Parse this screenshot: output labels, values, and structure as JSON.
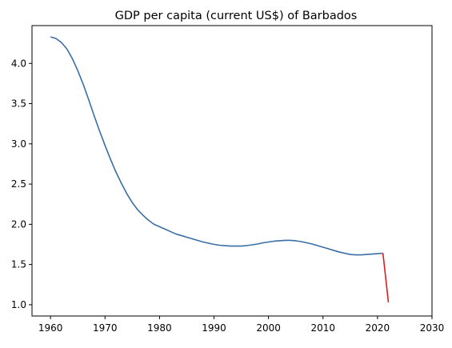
{
  "chart_data": {
    "type": "line",
    "title": "GDP per capita (current US$) of Barbados",
    "xlabel": "",
    "ylabel": "",
    "xlim": [
      1956.6,
      2030
    ],
    "ylim": [
      0.86,
      4.47
    ],
    "x_ticks": [
      1960,
      1970,
      1980,
      1990,
      2000,
      2010,
      2020,
      2030
    ],
    "y_ticks": [
      1.0,
      1.5,
      2.0,
      2.5,
      3.0,
      3.5,
      4.0
    ],
    "x_tick_labels": [
      "1960",
      "1970",
      "1980",
      "1990",
      "2000",
      "2010",
      "2020",
      "2030"
    ],
    "y_tick_labels": [
      "1.0",
      "1.5",
      "2.0",
      "2.5",
      "3.0",
      "3.5",
      "4.0"
    ],
    "grid": false,
    "legend": "none",
    "series": [
      {
        "color": "#3a6ea5",
        "points": [
          [
            1960,
            4.33
          ],
          [
            1961,
            4.31
          ],
          [
            1962,
            4.26
          ],
          [
            1963,
            4.18
          ],
          [
            1964,
            4.06
          ],
          [
            1965,
            3.91
          ],
          [
            1966,
            3.74
          ],
          [
            1967,
            3.55
          ],
          [
            1968,
            3.35
          ],
          [
            1969,
            3.16
          ],
          [
            1970,
            2.98
          ],
          [
            1971,
            2.81
          ],
          [
            1972,
            2.65
          ],
          [
            1973,
            2.51
          ],
          [
            1974,
            2.38
          ],
          [
            1975,
            2.27
          ],
          [
            1976,
            2.18
          ],
          [
            1977,
            2.11
          ],
          [
            1978,
            2.05
          ],
          [
            1979,
            2.0
          ],
          [
            1980,
            1.97
          ],
          [
            1981,
            1.94
          ],
          [
            1982,
            1.91
          ],
          [
            1983,
            1.88
          ],
          [
            1984,
            1.86
          ],
          [
            1985,
            1.84
          ],
          [
            1986,
            1.82
          ],
          [
            1987,
            1.8
          ],
          [
            1988,
            1.78
          ],
          [
            1989,
            1.765
          ],
          [
            1990,
            1.75
          ],
          [
            1991,
            1.74
          ],
          [
            1992,
            1.735
          ],
          [
            1993,
            1.73
          ],
          [
            1994,
            1.73
          ],
          [
            1995,
            1.73
          ],
          [
            1996,
            1.735
          ],
          [
            1997,
            1.745
          ],
          [
            1998,
            1.755
          ],
          [
            1999,
            1.77
          ],
          [
            2000,
            1.78
          ],
          [
            2001,
            1.79
          ],
          [
            2002,
            1.795
          ],
          [
            2003,
            1.8
          ],
          [
            2004,
            1.8
          ],
          [
            2005,
            1.795
          ],
          [
            2006,
            1.785
          ],
          [
            2007,
            1.77
          ],
          [
            2008,
            1.755
          ],
          [
            2009,
            1.735
          ],
          [
            2010,
            1.715
          ],
          [
            2011,
            1.695
          ],
          [
            2012,
            1.675
          ],
          [
            2013,
            1.655
          ],
          [
            2014,
            1.64
          ],
          [
            2015,
            1.625
          ],
          [
            2016,
            1.62
          ],
          [
            2017,
            1.62
          ],
          [
            2018,
            1.625
          ],
          [
            2019,
            1.63
          ],
          [
            2020,
            1.635
          ],
          [
            2021,
            1.64
          ]
        ]
      },
      {
        "color": "#e31a1c",
        "points": [
          [
            2021,
            1.64
          ],
          [
            2022,
            1.03
          ]
        ]
      }
    ]
  }
}
